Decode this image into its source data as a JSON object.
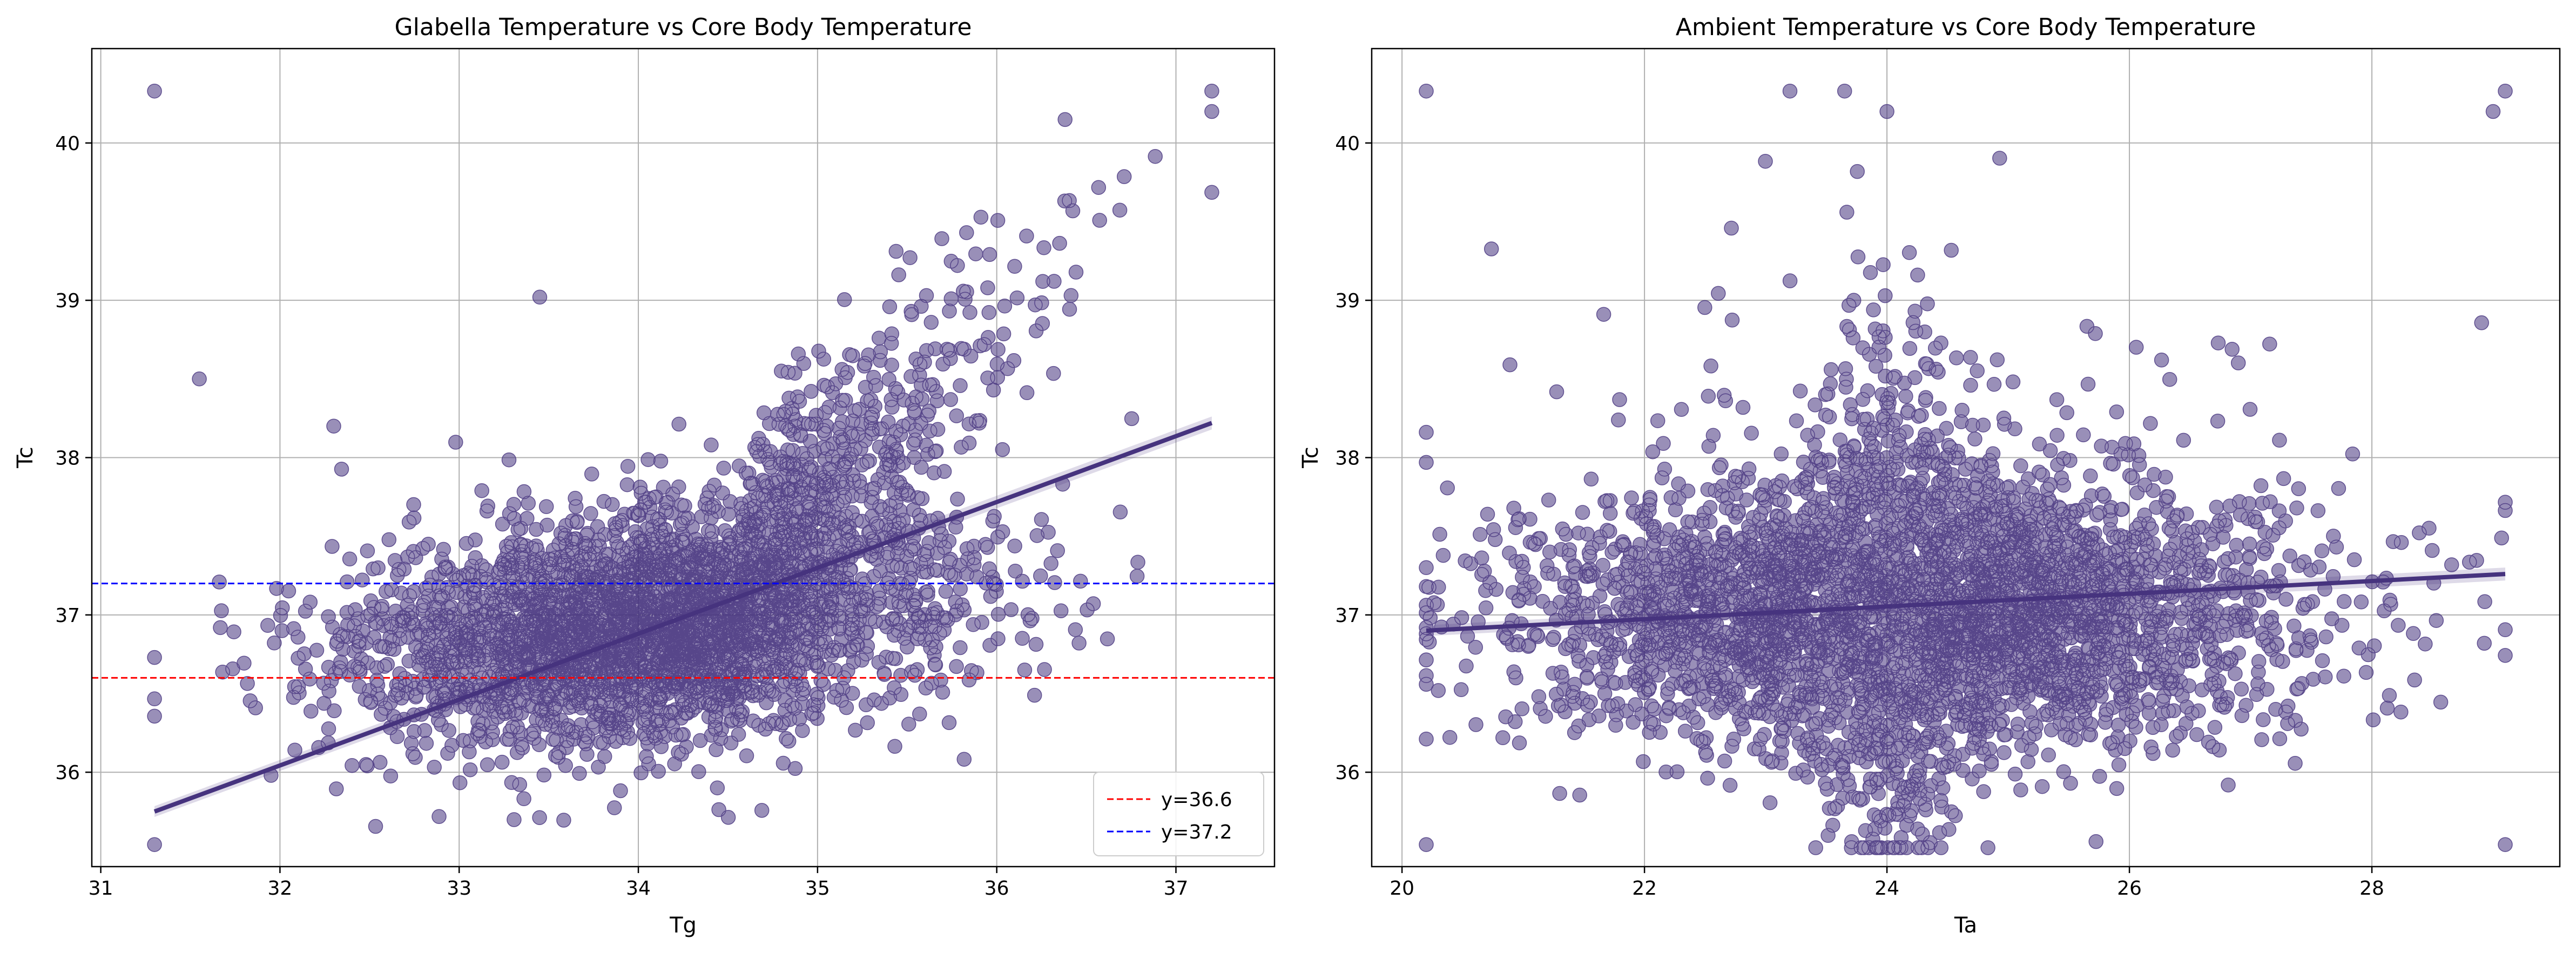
{
  "chart_data": [
    {
      "type": "scatter",
      "title": "Glabella Temperature vs Core Body Temperature",
      "xlabel": "Tg",
      "ylabel": "Tc",
      "xlim": [
        30.95,
        37.55
      ],
      "ylim": [
        35.4,
        40.6
      ],
      "xticks": [
        31,
        32,
        33,
        34,
        35,
        36,
        37
      ],
      "yticks": [
        36,
        37,
        38,
        39,
        40
      ],
      "grid": true,
      "point_color": "#46337e",
      "cloud": {
        "description_free": true,
        "points": 4200,
        "x_center": 34.2,
        "x_spread": 0.85,
        "x_range": [
          31.3,
          37.2
        ],
        "y_center": 36.95,
        "y_spread": 0.35,
        "upper_branch_slope": 1.1
      },
      "outliers": [
        [
          31.3,
          40.33
        ],
        [
          31.3,
          35.54
        ],
        [
          37.2,
          40.33
        ],
        [
          37.2,
          40.2
        ],
        [
          31.55,
          38.5
        ],
        [
          33.45,
          39.02
        ],
        [
          32.3,
          38.2
        ]
      ],
      "regression": {
        "x": [
          31.3,
          37.2
        ],
        "y": [
          35.75,
          38.22
        ],
        "color": "#46337e"
      },
      "hlines": [
        {
          "y": 36.6,
          "color": "#ff0000",
          "label": "y=36.6"
        },
        {
          "y": 37.2,
          "color": "#0000ff",
          "label": "y=37.2"
        }
      ],
      "legend": {
        "position": "lower-right",
        "entries": [
          "y=36.6",
          "y=37.2"
        ]
      }
    },
    {
      "type": "scatter",
      "title": "Ambient Temperature vs Core Body Temperature",
      "xlabel": "Ta",
      "ylabel": "Tc",
      "xlim": [
        19.75,
        29.55
      ],
      "ylim": [
        35.4,
        40.6
      ],
      "xticks": [
        20,
        22,
        24,
        26,
        28
      ],
      "yticks": [
        36,
        37,
        38,
        39,
        40
      ],
      "grid": true,
      "point_color": "#46337e",
      "cloud": {
        "points": 4200,
        "x_center": 24.2,
        "x_spread": 1.5,
        "x_range": [
          20.2,
          29.1
        ],
        "y_center": 37.0,
        "y_spread": 0.4
      },
      "outliers": [
        [
          20.2,
          40.33
        ],
        [
          20.2,
          35.54
        ],
        [
          29.1,
          40.33
        ],
        [
          29.1,
          35.54
        ],
        [
          29.0,
          40.2
        ],
        [
          24.0,
          40.2
        ],
        [
          23.2,
          40.33
        ]
      ],
      "regression": {
        "x": [
          20.2,
          29.1
        ],
        "y": [
          36.9,
          37.26
        ],
        "color": "#46337e"
      }
    }
  ]
}
